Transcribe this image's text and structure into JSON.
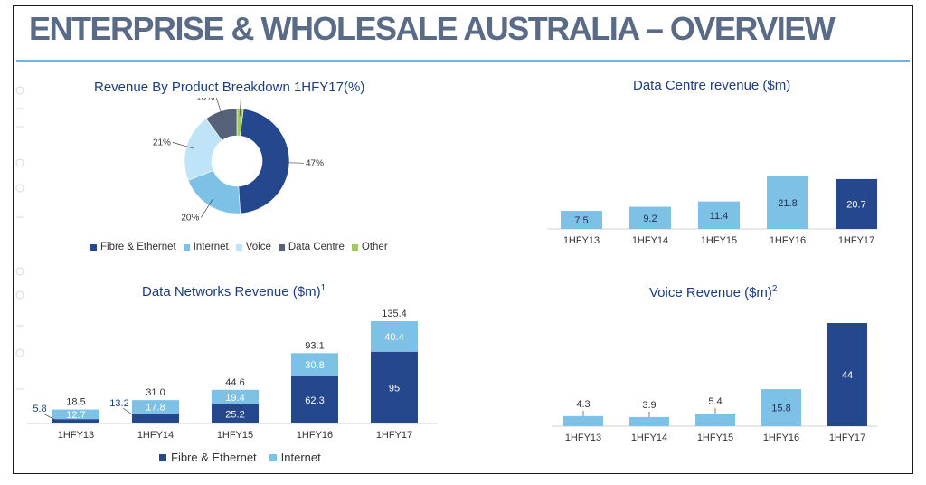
{
  "page": {
    "title": "ENTERPRISE & WHOLESALE AUSTRALIA – OVERVIEW"
  },
  "colors": {
    "dark_blue": "#24478e",
    "light_blue": "#7ec1e7",
    "pale_blue": "#bfe4f8",
    "slate": "#56627a",
    "green": "#9ccd5c",
    "title": "#596b86",
    "rule": "#6db3e4",
    "chart_title": "#1e3e7b"
  },
  "charts": {
    "pie": {
      "title": "Revenue By Product Breakdown 1HFY17(%)"
    },
    "dc": {
      "title": "Data Centre revenue ($m)"
    },
    "dn": {
      "title": "Data Networks Revenue ($m)",
      "title_sup": "1"
    },
    "voice": {
      "title": "Voice Revenue ($m)",
      "title_sup": "2"
    }
  },
  "chart_data": [
    {
      "type": "pie",
      "title": "Revenue By Product Breakdown 1HFY17(%)",
      "labels": [
        "Fibre & Ethernet",
        "Internet",
        "Voice",
        "Data Centre",
        "Other"
      ],
      "values": [
        47,
        20,
        21,
        10,
        2
      ],
      "value_labels": [
        "47%",
        "20%",
        "21%",
        "10%",
        "2%"
      ],
      "colors": [
        "#24478e",
        "#7ec1e7",
        "#bfe4f8",
        "#56627a",
        "#9ccd5c"
      ],
      "legend_position": "bottom"
    },
    {
      "type": "bar",
      "title": "Data Centre revenue ($m)",
      "categories": [
        "1HFY13",
        "1HFY14",
        "1HFY15",
        "1HFY16",
        "1HFY17"
      ],
      "values": [
        7.5,
        9.2,
        11.4,
        21.8,
        20.7
      ],
      "value_labels": [
        "7.5",
        "9.2",
        "11.4",
        "21.8",
        "20.7"
      ],
      "colors": [
        "#7ec1e7",
        "#7ec1e7",
        "#7ec1e7",
        "#7ec1e7",
        "#24478e"
      ]
    },
    {
      "type": "bar",
      "stacked": true,
      "title": "Data Networks Revenue ($m)",
      "categories": [
        "1HFY13",
        "1HFY14",
        "1HFY15",
        "1HFY16",
        "1HFY17"
      ],
      "series": [
        {
          "name": "Fibre & Ethernet",
          "values": [
            5.8,
            13.2,
            25.2,
            62.3,
            95
          ],
          "labels": [
            "5.8",
            "13.2",
            "25.2",
            "62.3",
            "95"
          ],
          "color": "#24478e"
        },
        {
          "name": "Internet",
          "values": [
            12.7,
            17.8,
            19.4,
            30.8,
            40.4
          ],
          "labels": [
            "12.7",
            "17.8",
            "19.4",
            "30.8",
            "40.4"
          ],
          "color": "#7ec1e7"
        }
      ],
      "totals": [
        18.5,
        31.0,
        44.6,
        93.1,
        135.4
      ],
      "total_labels": [
        "18.5",
        "31.0",
        "44.6",
        "93.1",
        "135.4"
      ],
      "legend_position": "bottom"
    },
    {
      "type": "bar",
      "title": "Voice Revenue ($m)",
      "categories": [
        "1HFY13",
        "1HFY14",
        "1HFY15",
        "1HFY16",
        "1HFY17"
      ],
      "values": [
        4.3,
        3.9,
        5.4,
        15.8,
        44
      ],
      "value_labels": [
        "4.3",
        "3.9",
        "5.4",
        "15.8",
        "44"
      ],
      "colors": [
        "#7ec1e7",
        "#7ec1e7",
        "#7ec1e7",
        "#7ec1e7",
        "#24478e"
      ]
    }
  ]
}
